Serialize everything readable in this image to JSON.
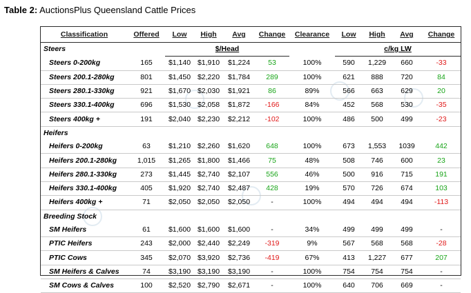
{
  "caption": {
    "label": "Table 2:",
    "title": "AuctionsPlus Queensland Cattle Prices"
  },
  "headers": {
    "classification": "Classification",
    "offered": "Offered",
    "low": "Low",
    "high": "High",
    "avg": "Avg",
    "change": "Change",
    "clearance": "Clearance",
    "low2": "Low",
    "high2": "High",
    "avg2": "Avg",
    "change2": "Change"
  },
  "units": {
    "head": "$/Head",
    "lw": "c/kg LW"
  },
  "groups": [
    {
      "name": "Steers",
      "rows": [
        {
          "cls": "Steers 0-200kg",
          "offered": "165",
          "low": "$1,140",
          "high": "$1,910",
          "avg": "$1,224",
          "change": "53",
          "clearance": "100%",
          "low2": "590",
          "high2": "1,229",
          "avg2": "660",
          "change2": "-33"
        },
        {
          "cls": "Steers 200.1-280kg",
          "offered": "801",
          "low": "$1,450",
          "high": "$2,220",
          "avg": "$1,784",
          "change": "289",
          "clearance": "100%",
          "low2": "621",
          "high2": "888",
          "avg2": "720",
          "change2": "84"
        },
        {
          "cls": "Steers 280.1-330kg",
          "offered": "921",
          "low": "$1,670",
          "high": "$2,030",
          "avg": "$1,921",
          "change": "86",
          "clearance": "89%",
          "low2": "566",
          "high2": "663",
          "avg2": "629",
          "change2": "20"
        },
        {
          "cls": "Steers 330.1-400kg",
          "offered": "696",
          "low": "$1,530",
          "high": "$2,058",
          "avg": "$1,872",
          "change": "-166",
          "clearance": "84%",
          "low2": "452",
          "high2": "568",
          "avg2": "530",
          "change2": "-35"
        },
        {
          "cls": "Steers 400kg +",
          "offered": "191",
          "low": "$2,040",
          "high": "$2,230",
          "avg": "$2,212",
          "change": "-102",
          "clearance": "100%",
          "low2": "486",
          "high2": "500",
          "avg2": "499",
          "change2": "-23"
        }
      ]
    },
    {
      "name": "Heifers",
      "rows": [
        {
          "cls": "Heifers 0-200kg",
          "offered": "63",
          "low": "$1,210",
          "high": "$2,260",
          "avg": "$1,620",
          "change": "648",
          "clearance": "100%",
          "low2": "673",
          "high2": "1,553",
          "avg2": "1039",
          "change2": "442"
        },
        {
          "cls": "Heifers 200.1-280kg",
          "offered": "1,015",
          "low": "$1,265",
          "high": "$1,800",
          "avg": "$1,466",
          "change": "75",
          "clearance": "48%",
          "low2": "508",
          "high2": "746",
          "avg2": "600",
          "change2": "23"
        },
        {
          "cls": "Heifers 280.1-330kg",
          "offered": "273",
          "low": "$1,445",
          "high": "$2,740",
          "avg": "$2,107",
          "change": "556",
          "clearance": "46%",
          "low2": "500",
          "high2": "916",
          "avg2": "715",
          "change2": "191"
        },
        {
          "cls": "Heifers 330.1-400kg",
          "offered": "405",
          "low": "$1,920",
          "high": "$2,740",
          "avg": "$2,487",
          "change": "428",
          "clearance": "19%",
          "low2": "570",
          "high2": "726",
          "avg2": "674",
          "change2": "103"
        },
        {
          "cls": "Heifers 400kg +",
          "offered": "71",
          "low": "$2,050",
          "high": "$2,050",
          "avg": "$2,050",
          "change": "-",
          "clearance": "100%",
          "low2": "494",
          "high2": "494",
          "avg2": "494",
          "change2": "-113"
        }
      ]
    },
    {
      "name": "Breeding Stock",
      "rows": [
        {
          "cls": "SM Heifers",
          "offered": "61",
          "low": "$1,600",
          "high": "$1,600",
          "avg": "$1,600",
          "change": "-",
          "clearance": "34%",
          "low2": "499",
          "high2": "499",
          "avg2": "499",
          "change2": "-"
        },
        {
          "cls": "PTIC Heifers",
          "offered": "243",
          "low": "$2,000",
          "high": "$2,440",
          "avg": "$2,249",
          "change": "-319",
          "clearance": "9%",
          "low2": "567",
          "high2": "568",
          "avg2": "568",
          "change2": "-28"
        },
        {
          "cls": "PTIC Cows",
          "offered": "345",
          "low": "$2,070",
          "high": "$3,920",
          "avg": "$2,736",
          "change": "-419",
          "clearance": "67%",
          "low2": "413",
          "high2": "1,227",
          "avg2": "677",
          "change2": "207"
        },
        {
          "cls": "SM Heifers & Calves",
          "offered": "74",
          "low": "$3,190",
          "high": "$3,190",
          "avg": "$3,190",
          "change": "-",
          "clearance": "100%",
          "low2": "754",
          "high2": "754",
          "avg2": "754",
          "change2": "-"
        },
        {
          "cls": "SM Cows & Calves",
          "offered": "100",
          "low": "$2,520",
          "high": "$2,790",
          "avg": "$2,671",
          "change": "-",
          "clearance": "100%",
          "low2": "640",
          "high2": "706",
          "avg2": "669",
          "change2": "-"
        }
      ]
    }
  ],
  "colors": {
    "positive": "#18a418",
    "negative": "#e01818",
    "border": "#2a2a2a"
  }
}
